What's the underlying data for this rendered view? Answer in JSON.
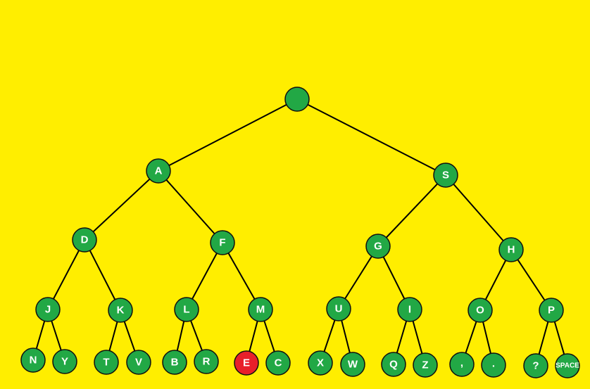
{
  "colors": {
    "background": "#ffee00",
    "node_fill": "#22a845",
    "highlight_fill": "#e8202a",
    "node_stroke": "#101010",
    "edge": "#000000",
    "label": "#ffffff"
  },
  "tree": {
    "nodes": [
      {
        "id": "root",
        "label": "",
        "highlighted": false
      },
      {
        "id": "A",
        "label": "A",
        "highlighted": false
      },
      {
        "id": "S",
        "label": "S",
        "highlighted": false
      },
      {
        "id": "D",
        "label": "D",
        "highlighted": false
      },
      {
        "id": "F",
        "label": "F",
        "highlighted": false
      },
      {
        "id": "G",
        "label": "G",
        "highlighted": false
      },
      {
        "id": "H",
        "label": "H",
        "highlighted": false
      },
      {
        "id": "J",
        "label": "J",
        "highlighted": false
      },
      {
        "id": "K",
        "label": "K",
        "highlighted": false
      },
      {
        "id": "L",
        "label": "L",
        "highlighted": false
      },
      {
        "id": "M",
        "label": "M",
        "highlighted": false
      },
      {
        "id": "U",
        "label": "U",
        "highlighted": false
      },
      {
        "id": "I",
        "label": "I",
        "highlighted": false
      },
      {
        "id": "O",
        "label": "O",
        "highlighted": false
      },
      {
        "id": "P",
        "label": "P",
        "highlighted": false
      },
      {
        "id": "N",
        "label": "N",
        "highlighted": false
      },
      {
        "id": "Y",
        "label": "Y",
        "highlighted": false
      },
      {
        "id": "T",
        "label": "T",
        "highlighted": false
      },
      {
        "id": "V",
        "label": "V",
        "highlighted": false
      },
      {
        "id": "B",
        "label": "B",
        "highlighted": false
      },
      {
        "id": "R",
        "label": "R",
        "highlighted": false
      },
      {
        "id": "E",
        "label": "E",
        "highlighted": true
      },
      {
        "id": "C",
        "label": "C",
        "highlighted": false
      },
      {
        "id": "X",
        "label": "X",
        "highlighted": false
      },
      {
        "id": "W",
        "label": "W",
        "highlighted": false
      },
      {
        "id": "Q",
        "label": "Q",
        "highlighted": false
      },
      {
        "id": "Z",
        "label": "Z",
        "highlighted": false
      },
      {
        "id": "comma",
        "label": ",",
        "highlighted": false
      },
      {
        "id": "period",
        "label": ".",
        "highlighted": false
      },
      {
        "id": "question",
        "label": "?",
        "highlighted": false
      },
      {
        "id": "space",
        "label": "SPACE",
        "highlighted": false
      }
    ],
    "edges": [
      [
        "root",
        "A"
      ],
      [
        "root",
        "S"
      ],
      [
        "A",
        "D"
      ],
      [
        "A",
        "F"
      ],
      [
        "S",
        "G"
      ],
      [
        "S",
        "H"
      ],
      [
        "D",
        "J"
      ],
      [
        "D",
        "K"
      ],
      [
        "F",
        "L"
      ],
      [
        "F",
        "M"
      ],
      [
        "G",
        "U"
      ],
      [
        "G",
        "I"
      ],
      [
        "H",
        "O"
      ],
      [
        "H",
        "P"
      ],
      [
        "J",
        "N"
      ],
      [
        "J",
        "Y"
      ],
      [
        "K",
        "T"
      ],
      [
        "K",
        "V"
      ],
      [
        "L",
        "B"
      ],
      [
        "L",
        "R"
      ],
      [
        "M",
        "E"
      ],
      [
        "M",
        "C"
      ],
      [
        "U",
        "X"
      ],
      [
        "U",
        "W"
      ],
      [
        "I",
        "Q"
      ],
      [
        "I",
        "Z"
      ],
      [
        "O",
        "comma"
      ],
      [
        "O",
        "period"
      ],
      [
        "P",
        "question"
      ],
      [
        "P",
        "space"
      ]
    ]
  }
}
